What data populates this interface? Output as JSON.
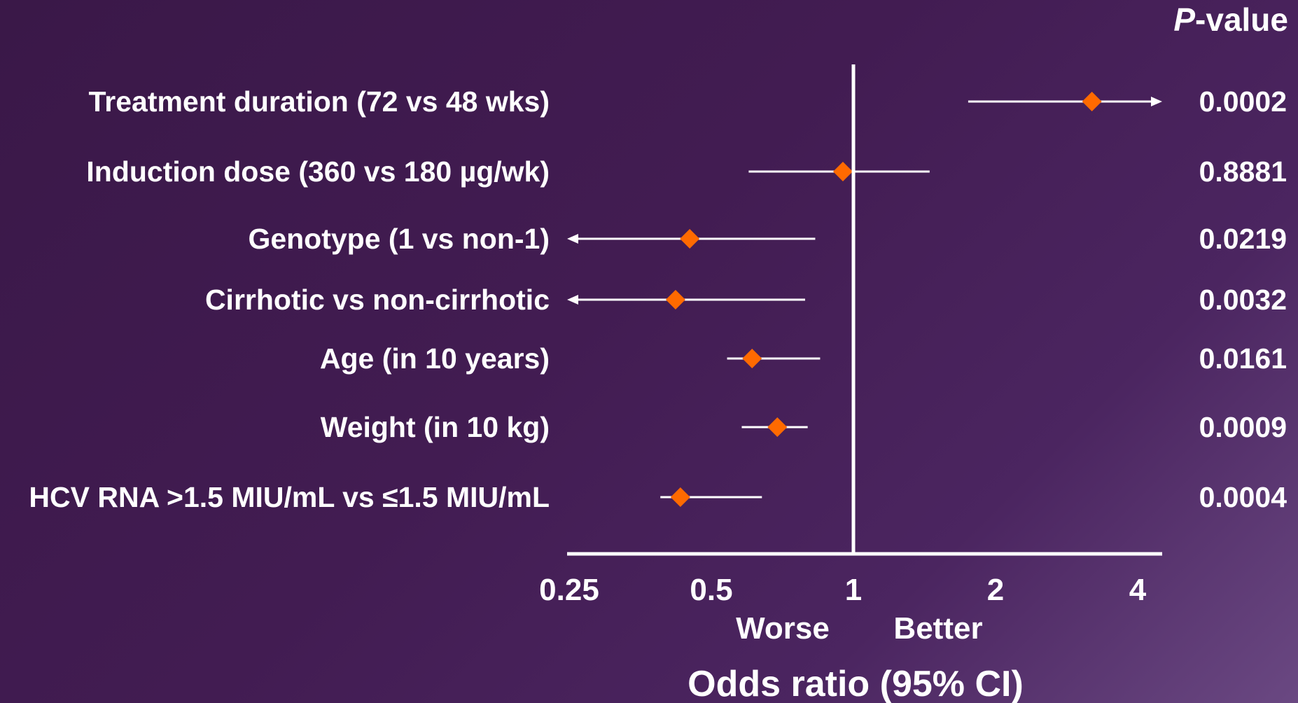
{
  "chart_data": {
    "type": "forest",
    "pvalue_header_italic": "P",
    "pvalue_header_rest": "-value",
    "xlabel": "Odds ratio (95% CI)",
    "direction_left": "Worse",
    "direction_right": "Better",
    "scale": "log2",
    "xlim": [
      0.25,
      4
    ],
    "ticks": [
      {
        "value": 0.25,
        "label": "0.25"
      },
      {
        "value": 0.5,
        "label": "0.5"
      },
      {
        "value": 1,
        "label": "1"
      },
      {
        "value": 2,
        "label": "2"
      },
      {
        "value": 4,
        "label": "4"
      }
    ],
    "reference_line": 1,
    "rows": [
      {
        "label": "Treatment duration (72 vs 48 wks)",
        "or": 3.2,
        "ci_low": 1.75,
        "ci_high": 4.0,
        "arrow": "right",
        "p_value": "0.0002"
      },
      {
        "label": "Induction dose (360 vs 180 µg/wk)",
        "or": 0.95,
        "ci_low": 0.6,
        "ci_high": 1.45,
        "arrow": "none",
        "p_value": "0.8881"
      },
      {
        "label": "Genotype (1 vs non-1)",
        "or": 0.45,
        "ci_low": 0.25,
        "ci_high": 0.83,
        "arrow": "left",
        "p_value": "0.0219"
      },
      {
        "label": "Cirrhotic vs non-cirrhotic",
        "or": 0.42,
        "ci_low": 0.25,
        "ci_high": 0.79,
        "arrow": "left",
        "p_value": "0.0032"
      },
      {
        "label": "Age (in 10 years)",
        "or": 0.61,
        "ci_low": 0.54,
        "ci_high": 0.85,
        "arrow": "none",
        "p_value": "0.0161"
      },
      {
        "label": "Weight (in 10 kg)",
        "or": 0.69,
        "ci_low": 0.58,
        "ci_high": 0.8,
        "arrow": "none",
        "p_value": "0.0009"
      },
      {
        "label": "HCV RNA >1.5 MIU/mL vs ≤1.5 MIU/mL",
        "or": 0.43,
        "ci_low": 0.39,
        "ci_high": 0.64,
        "arrow": "none",
        "p_value": "0.0004"
      }
    ],
    "colors": {
      "marker": "#ff6a00",
      "lines": "#ffffff",
      "text": "#ffffff",
      "background": "#421c52"
    }
  }
}
